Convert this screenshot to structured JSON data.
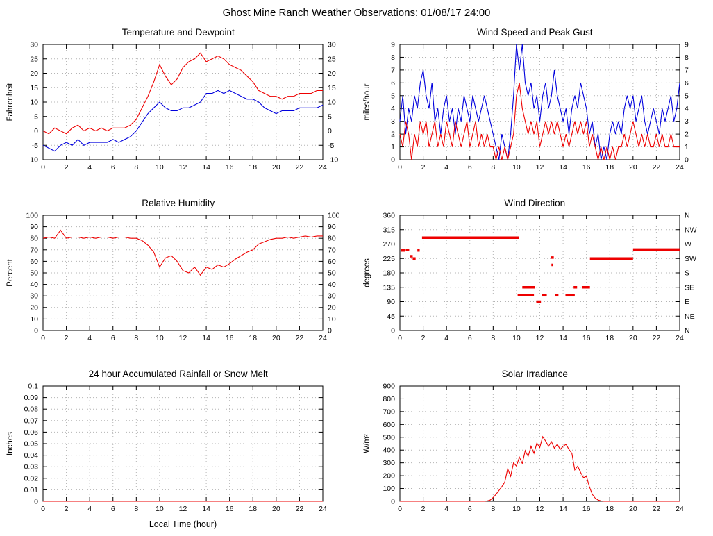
{
  "page_title": "Ghost Mine Ranch Weather Observations: 01/08/17 24:00",
  "xlabel": "Local Time (hour)",
  "colors": {
    "red": "#ee0000",
    "blue": "#0000dd",
    "grid": "#b4b4b4",
    "axis": "#000000"
  },
  "chart_data": [
    {
      "id": "temperature",
      "type": "line",
      "title": "Temperature and Dewpoint",
      "ylabel": "Fahrenheit",
      "xlim": [
        0,
        24
      ],
      "ylim": [
        -10,
        30
      ],
      "xtick_vals": [
        0,
        2,
        4,
        6,
        8,
        10,
        12,
        14,
        16,
        18,
        20,
        22,
        24
      ],
      "ytick_vals": [
        -10,
        -5,
        0,
        5,
        10,
        15,
        20,
        25,
        30
      ],
      "mirror_y": true,
      "series": [
        {
          "name": "Temperature",
          "color": "#ee0000",
          "x0": 0,
          "dx": 0.5,
          "y": [
            0,
            -1,
            1,
            0,
            -1,
            1,
            2,
            0,
            1,
            0,
            1,
            0,
            1,
            1,
            1,
            2,
            4,
            8,
            12,
            17,
            23,
            19,
            16,
            18,
            22,
            24,
            25,
            27,
            24,
            25,
            26,
            25,
            23,
            22,
            21,
            19,
            17,
            14,
            13,
            12,
            12,
            11,
            12,
            12,
            13,
            13,
            13,
            14,
            14
          ]
        },
        {
          "name": "Dewpoint",
          "color": "#0000dd",
          "x0": 0,
          "dx": 0.5,
          "y": [
            -5,
            -6,
            -7,
            -5,
            -4,
            -5,
            -3,
            -5,
            -4,
            -4,
            -4,
            -4,
            -3,
            -4,
            -3,
            -2,
            0,
            3,
            6,
            8,
            10,
            8,
            7,
            7,
            8,
            8,
            9,
            10,
            13,
            13,
            14,
            13,
            14,
            13,
            12,
            11,
            11,
            10,
            8,
            7,
            6,
            7,
            7,
            7,
            8,
            8,
            8,
            8,
            9
          ]
        }
      ]
    },
    {
      "id": "wind-speed",
      "type": "line",
      "title": "Wind Speed and Peak Gust",
      "ylabel": "miles/hour",
      "xlim": [
        0,
        24
      ],
      "ylim": [
        0,
        9
      ],
      "xtick_vals": [
        0,
        2,
        4,
        6,
        8,
        10,
        12,
        14,
        16,
        18,
        20,
        22,
        24
      ],
      "ytick_vals": [
        0,
        1,
        2,
        3,
        4,
        5,
        6,
        7,
        8,
        9
      ],
      "mirror_y": true,
      "series": [
        {
          "name": "Peak Gust",
          "color": "#0000dd",
          "x0": 0,
          "dx": 0.25,
          "y": [
            3,
            5,
            2,
            4,
            3,
            5,
            4,
            6,
            7,
            5,
            4,
            6,
            3,
            4,
            2,
            4,
            5,
            3,
            4,
            2,
            4,
            3,
            5,
            4,
            3,
            5,
            4,
            3,
            4,
            5,
            4,
            3,
            2,
            1,
            0,
            2,
            1,
            0,
            2,
            5,
            9,
            7,
            9,
            6,
            5,
            6,
            4,
            5,
            3,
            5,
            6,
            4,
            5,
            7,
            5,
            4,
            3,
            4,
            2,
            4,
            5,
            4,
            6,
            5,
            4,
            2,
            3,
            1,
            2,
            0,
            1,
            0,
            2,
            3,
            2,
            3,
            2,
            4,
            5,
            4,
            5,
            3,
            4,
            5,
            3,
            2,
            3,
            4,
            3,
            2,
            4,
            3,
            4,
            5,
            3,
            4,
            6
          ]
        },
        {
          "name": "Wind Speed",
          "color": "#ee0000",
          "x0": 0,
          "dx": 0.25,
          "y": [
            2,
            1,
            3,
            2,
            0,
            2,
            1,
            3,
            2,
            3,
            1,
            2,
            3,
            1,
            2,
            1,
            3,
            2,
            1,
            3,
            2,
            1,
            2,
            3,
            1,
            2,
            3,
            1,
            2,
            1,
            2,
            1,
            1,
            0,
            1,
            0,
            1,
            0,
            1,
            2,
            5,
            6,
            4,
            3,
            2,
            3,
            2,
            3,
            1,
            2,
            3,
            2,
            3,
            2,
            3,
            2,
            1,
            2,
            1,
            2,
            3,
            2,
            3,
            2,
            3,
            1,
            2,
            1,
            0,
            1,
            0,
            1,
            0,
            1,
            0,
            1,
            1,
            2,
            1,
            2,
            3,
            2,
            1,
            2,
            1,
            2,
            1,
            1,
            2,
            1,
            2,
            1,
            1,
            2,
            1,
            1,
            1
          ]
        }
      ]
    },
    {
      "id": "humidity",
      "type": "line",
      "title": "Relative Humidity",
      "ylabel": "Percent",
      "xlim": [
        0,
        24
      ],
      "ylim": [
        0,
        100
      ],
      "xtick_vals": [
        0,
        2,
        4,
        6,
        8,
        10,
        12,
        14,
        16,
        18,
        20,
        22,
        24
      ],
      "ytick_vals": [
        0,
        10,
        20,
        30,
        40,
        50,
        60,
        70,
        80,
        90,
        100
      ],
      "mirror_y": true,
      "series": [
        {
          "name": "Relative Humidity",
          "color": "#ee0000",
          "x0": 0,
          "dx": 0.5,
          "y": [
            80,
            81,
            80,
            87,
            80,
            81,
            81,
            80,
            81,
            80,
            81,
            81,
            80,
            81,
            81,
            80,
            80,
            78,
            74,
            68,
            55,
            63,
            65,
            60,
            52,
            50,
            55,
            48,
            55,
            53,
            57,
            55,
            58,
            62,
            65,
            68,
            70,
            75,
            77,
            79,
            80,
            80,
            81,
            80,
            81,
            82,
            81,
            82,
            82
          ]
        }
      ]
    },
    {
      "id": "wind-direction",
      "type": "scatter",
      "title": "Wind Direction",
      "ylabel": "degrees",
      "xlim": [
        0,
        24
      ],
      "ylim": [
        0,
        360
      ],
      "xtick_vals": [
        0,
        2,
        4,
        6,
        8,
        10,
        12,
        14,
        16,
        18,
        20,
        22,
        24
      ],
      "ytick_vals": [
        0,
        45,
        90,
        135,
        180,
        225,
        270,
        315,
        360
      ],
      "right_labels": [
        "N",
        "NE",
        "E",
        "SE",
        "S",
        "SW",
        "W",
        "NW",
        "N"
      ],
      "series": [
        {
          "name": "Wind Direction",
          "color": "#ee0000",
          "segments": [
            [
              0.1,
              0.45,
              250
            ],
            [
              0.5,
              0.8,
              252
            ],
            [
              0.85,
              1.1,
              232
            ],
            [
              1.1,
              1.35,
              225
            ],
            [
              1.5,
              1.7,
              250
            ],
            [
              1.9,
              10.2,
              290
            ],
            [
              10.1,
              11.5,
              110
            ],
            [
              10.5,
              11.6,
              135
            ],
            [
              11.7,
              12.1,
              90
            ],
            [
              12.2,
              12.6,
              110
            ],
            [
              12.95,
              13.2,
              228
            ],
            [
              13.0,
              13.15,
              205
            ],
            [
              13.3,
              13.6,
              110
            ],
            [
              14.2,
              15.0,
              110
            ],
            [
              14.9,
              15.2,
              135
            ],
            [
              15.6,
              16.3,
              135
            ],
            [
              16.3,
              20.0,
              225
            ],
            [
              20.0,
              24.0,
              253
            ]
          ]
        }
      ]
    },
    {
      "id": "rainfall",
      "type": "line",
      "title": "24 hour Accumulated Rainfall or Snow Melt",
      "ylabel": "Inches",
      "xlabel": "Local Time (hour)",
      "xlim": [
        0,
        24
      ],
      "ylim": [
        0,
        0.1
      ],
      "xtick_vals": [
        0,
        2,
        4,
        6,
        8,
        10,
        12,
        14,
        16,
        18,
        20,
        22,
        24
      ],
      "ytick_vals": [
        0,
        0.01,
        0.02,
        0.03,
        0.04,
        0.05,
        0.06,
        0.07,
        0.08,
        0.09,
        0.1
      ],
      "series": [
        {
          "name": "Accumulated Rainfall",
          "color": "#ee0000",
          "x0": 0,
          "dx": 24,
          "y": [
            0,
            0
          ]
        }
      ]
    },
    {
      "id": "solar",
      "type": "line",
      "title": "Solar Irradiance",
      "ylabel": "W/m²",
      "xlim": [
        0,
        24
      ],
      "ylim": [
        0,
        900
      ],
      "xtick_vals": [
        0,
        2,
        4,
        6,
        8,
        10,
        12,
        14,
        16,
        18,
        20,
        22,
        24
      ],
      "ytick_vals": [
        0,
        100,
        200,
        300,
        400,
        500,
        600,
        700,
        800,
        900
      ],
      "series": [
        {
          "name": "Solar Irradiance",
          "color": "#ee0000",
          "x0": 0,
          "dx": 0.25,
          "y": [
            0,
            0,
            0,
            0,
            0,
            0,
            0,
            0,
            0,
            0,
            0,
            0,
            0,
            0,
            0,
            0,
            0,
            0,
            0,
            0,
            0,
            0,
            0,
            0,
            0,
            0,
            0,
            0,
            0,
            0,
            3,
            10,
            30,
            55,
            85,
            115,
            150,
            255,
            195,
            300,
            275,
            345,
            295,
            395,
            350,
            430,
            375,
            455,
            420,
            505,
            470,
            430,
            465,
            415,
            445,
            405,
            430,
            445,
            405,
            375,
            245,
            275,
            225,
            185,
            195,
            115,
            55,
            25,
            10,
            3,
            0,
            0,
            0,
            0,
            0,
            0,
            0,
            0,
            0,
            0,
            0,
            0,
            0,
            0,
            0,
            0,
            0,
            0,
            0,
            0,
            0,
            0,
            0,
            0,
            0,
            0,
            0
          ]
        }
      ]
    }
  ]
}
